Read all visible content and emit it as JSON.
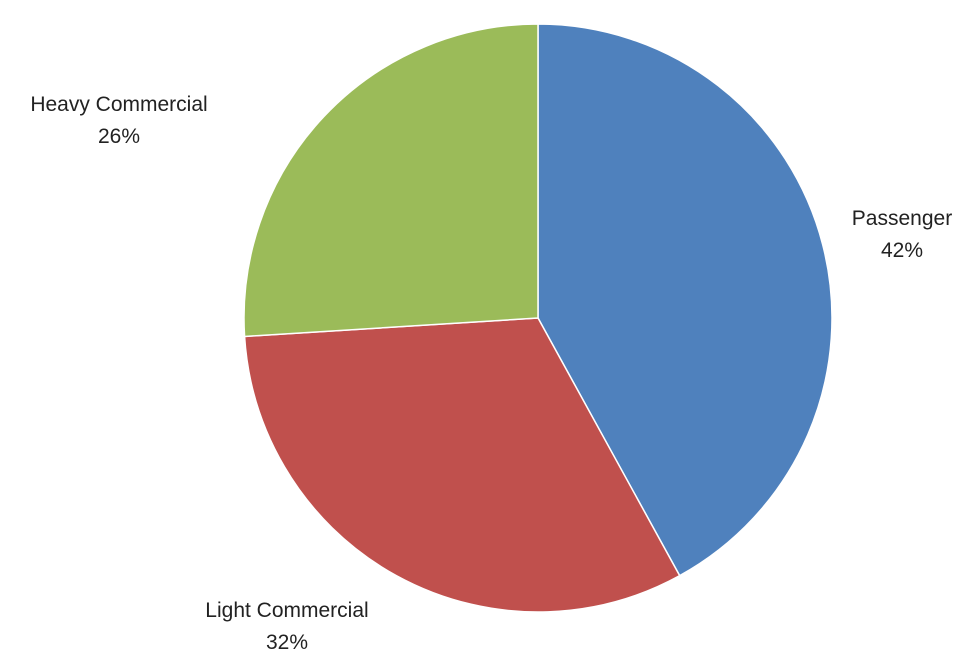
{
  "chart_data": {
    "type": "pie",
    "title": "",
    "slices": [
      {
        "label": "Passenger",
        "value": 42,
        "display": "42%",
        "color": "#4F81BD"
      },
      {
        "label": "Light Commercial",
        "value": 32,
        "display": "32%",
        "color": "#C0504D"
      },
      {
        "label": "Heavy Commercial",
        "value": 26,
        "display": "26%",
        "color": "#9BBB59"
      }
    ],
    "start_angle": "12 o'clock",
    "direction": "clockwise",
    "legend": "none",
    "data_labels": "outside, category name and percentage"
  }
}
